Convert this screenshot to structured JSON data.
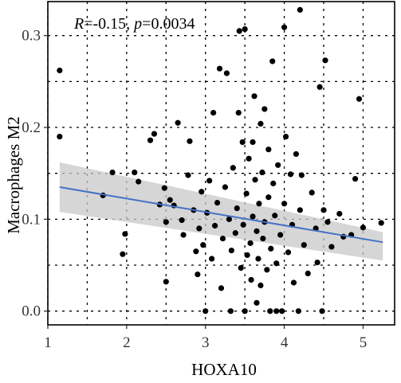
{
  "chart_data": {
    "type": "scatter",
    "title": "",
    "xlabel": "HOXA10",
    "ylabel": "Macrophages M2",
    "xlim": [
      1.0,
      5.4
    ],
    "ylim": [
      -0.015,
      0.337
    ],
    "x_ticks": [
      1,
      2,
      3,
      4,
      5
    ],
    "x_tick_labels": [
      "1",
      "2",
      "3",
      "4",
      "5"
    ],
    "y_ticks": [
      0.0,
      0.1,
      0.2,
      0.3
    ],
    "y_tick_labels": [
      "0.0",
      "0.1",
      "0.2",
      "0.3"
    ],
    "grid": true,
    "legend": "none",
    "annotation": {
      "r_label": "R",
      "r_value": "=-0.15, ",
      "p_label": "p",
      "p_value": "=0.0034"
    },
    "colors": {
      "points": "#000000",
      "regression_line": "#4472C4",
      "confidence_band": "#c8c8c8"
    },
    "regression": {
      "x": [
        1.15,
        5.25
      ],
      "y": [
        0.135,
        0.075
      ],
      "ci_upper": [
        0.162,
        0.086
      ],
      "ci_lower": [
        0.108,
        0.055
      ]
    },
    "points": [
      [
        1.15,
        0.262
      ],
      [
        1.15,
        0.19
      ],
      [
        1.7,
        0.126
      ],
      [
        1.82,
        0.151
      ],
      [
        1.95,
        0.062
      ],
      [
        1.98,
        0.084
      ],
      [
        2.1,
        0.151
      ],
      [
        2.15,
        0.141
      ],
      [
        2.3,
        0.186
      ],
      [
        2.35,
        0.193
      ],
      [
        2.42,
        0.116
      ],
      [
        2.48,
        0.134
      ],
      [
        2.5,
        0.097
      ],
      [
        2.5,
        0.032
      ],
      [
        2.55,
        0.121
      ],
      [
        2.6,
        0.115
      ],
      [
        2.65,
        0.205
      ],
      [
        2.7,
        0.099
      ],
      [
        2.72,
        0.083
      ],
      [
        2.78,
        0.148
      ],
      [
        2.8,
        0.185
      ],
      [
        2.85,
        0.11
      ],
      [
        2.88,
        0.065
      ],
      [
        2.9,
        0.04
      ],
      [
        2.92,
        0.09
      ],
      [
        2.95,
        0.13
      ],
      [
        2.97,
        0.072
      ],
      [
        3.0,
        0.0
      ],
      [
        3.02,
        0.107
      ],
      [
        3.05,
        0.142
      ],
      [
        3.08,
        0.057
      ],
      [
        3.1,
        0.216
      ],
      [
        3.12,
        0.093
      ],
      [
        3.15,
        0.118
      ],
      [
        3.18,
        0.264
      ],
      [
        3.2,
        0.025
      ],
      [
        3.22,
        0.079
      ],
      [
        3.25,
        0.135
      ],
      [
        3.27,
        0.259
      ],
      [
        3.3,
        0.1
      ],
      [
        3.32,
        0.0
      ],
      [
        3.33,
        0.066
      ],
      [
        3.35,
        0.156
      ],
      [
        3.38,
        0.085
      ],
      [
        3.4,
        0.112
      ],
      [
        3.42,
        0.216
      ],
      [
        3.43,
        0.305
      ],
      [
        3.45,
        0.047
      ],
      [
        3.47,
        0.184
      ],
      [
        3.48,
        0.094
      ],
      [
        3.5,
        0.307
      ],
      [
        3.5,
        0.0
      ],
      [
        3.52,
        0.128
      ],
      [
        3.53,
        0.061
      ],
      [
        3.55,
        0.166
      ],
      [
        3.57,
        0.074
      ],
      [
        3.58,
        0.034
      ],
      [
        3.6,
        0.184
      ],
      [
        3.6,
        0.103
      ],
      [
        3.62,
        0.234
      ],
      [
        3.63,
        0.143
      ],
      [
        3.65,
        0.009
      ],
      [
        3.65,
        0.087
      ],
      [
        3.67,
        0.057
      ],
      [
        3.68,
        0.117
      ],
      [
        3.7,
        0.204
      ],
      [
        3.7,
        0.028
      ],
      [
        3.72,
        0.151
      ],
      [
        3.73,
        0.079
      ],
      [
        3.75,
        0.22
      ],
      [
        3.75,
        0.097
      ],
      [
        3.78,
        0.045
      ],
      [
        3.8,
        0.124
      ],
      [
        3.8,
        0.176
      ],
      [
        3.82,
        0.0
      ],
      [
        3.83,
        0.068
      ],
      [
        3.85,
        0.272
      ],
      [
        3.86,
        0.139
      ],
      [
        3.88,
        0.104
      ],
      [
        3.9,
        0.052
      ],
      [
        3.9,
        0.0
      ],
      [
        3.92,
        0.159
      ],
      [
        3.95,
        0.083
      ],
      [
        3.97,
        0.0
      ],
      [
        4.0,
        0.309
      ],
      [
        4.0,
        0.117
      ],
      [
        4.02,
        0.19
      ],
      [
        4.05,
        0.064
      ],
      [
        4.08,
        0.149
      ],
      [
        4.1,
        0.094
      ],
      [
        4.12,
        0.031
      ],
      [
        4.15,
        0.171
      ],
      [
        4.18,
        0.0
      ],
      [
        4.2,
        0.328
      ],
      [
        4.2,
        0.11
      ],
      [
        4.22,
        0.148
      ],
      [
        4.25,
        0.072
      ],
      [
        4.3,
        0.041
      ],
      [
        4.35,
        0.129
      ],
      [
        4.4,
        0.09
      ],
      [
        4.42,
        0.053
      ],
      [
        4.45,
        0.244
      ],
      [
        4.48,
        0.0
      ],
      [
        4.5,
        0.11
      ],
      [
        4.52,
        0.273
      ],
      [
        4.55,
        0.097
      ],
      [
        4.6,
        0.07
      ],
      [
        4.7,
        0.106
      ],
      [
        4.75,
        0.081
      ],
      [
        4.85,
        0.083
      ],
      [
        4.9,
        0.144
      ],
      [
        4.95,
        0.231
      ],
      [
        5.0,
        0.091
      ],
      [
        5.23,
        0.096
      ]
    ]
  }
}
